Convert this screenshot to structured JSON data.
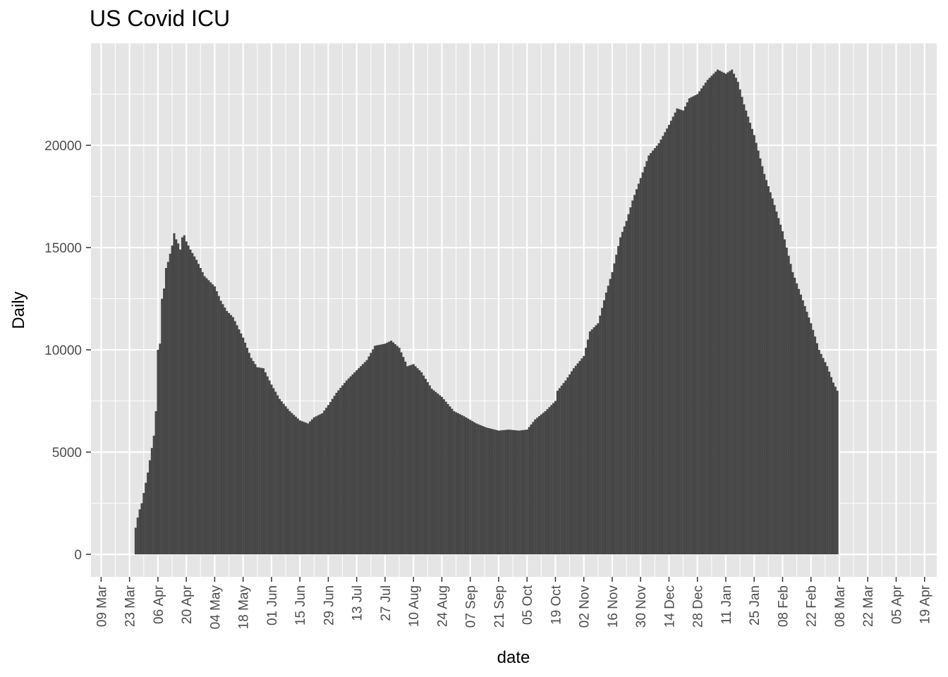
{
  "chart_data": {
    "type": "bar",
    "title": "US Covid ICU",
    "xlabel": "date",
    "ylabel": "Daily",
    "xlim": [
      "2020-03-04",
      "2021-04-25"
    ],
    "ylim": [
      -1100,
      25000
    ],
    "grid": true,
    "legend": "none",
    "colors": {
      "bar": "#474747",
      "panel": "#e5e5e5",
      "grid": "#ffffff",
      "text": "#4d4d4d"
    },
    "yticks": [
      0,
      5000,
      10000,
      15000,
      20000
    ],
    "ytick_labels": [
      "0",
      "5000",
      "10000",
      "15000",
      "20000"
    ],
    "xticks": [
      "2020-03-09",
      "2020-03-23",
      "2020-04-06",
      "2020-04-20",
      "2020-05-04",
      "2020-05-18",
      "2020-06-01",
      "2020-06-15",
      "2020-06-29",
      "2020-07-13",
      "2020-07-27",
      "2020-08-10",
      "2020-08-24",
      "2020-09-07",
      "2020-09-21",
      "2020-10-05",
      "2020-10-19",
      "2020-11-02",
      "2020-11-16",
      "2020-11-30",
      "2020-12-14",
      "2020-12-28",
      "2021-01-11",
      "2021-01-25",
      "2021-02-08",
      "2021-02-22",
      "2021-03-08",
      "2021-03-22",
      "2021-04-05",
      "2021-04-19"
    ],
    "xtick_labels": [
      "09 Mar",
      "23 Mar",
      "06 Apr",
      "20 Apr",
      "04 May",
      "18 May",
      "01 Jun",
      "15 Jun",
      "29 Jun",
      "13 Jul",
      "27 Jul",
      "10 Aug",
      "24 Aug",
      "07 Sep",
      "21 Sep",
      "05 Oct",
      "19 Oct",
      "02 Nov",
      "16 Nov",
      "30 Nov",
      "14 Dec",
      "28 Dec",
      "11 Jan",
      "25 Jan",
      "08 Feb",
      "22 Feb",
      "08 Mar",
      "22 Mar",
      "05 Apr",
      "19 Apr"
    ],
    "series": [
      {
        "start_date": "2020-03-26",
        "end_date": "2021-03-07",
        "keypoints": [
          [
            "2020-03-26",
            1300
          ],
          [
            "2020-03-27",
            1800
          ],
          [
            "2020-03-28",
            2200
          ],
          [
            "2020-03-29",
            2500
          ],
          [
            "2020-03-30",
            3000
          ],
          [
            "2020-03-31",
            3500
          ],
          [
            "2020-04-01",
            4000
          ],
          [
            "2020-04-02",
            4600
          ],
          [
            "2020-04-03",
            5200
          ],
          [
            "2020-04-04",
            5800
          ],
          [
            "2020-04-05",
            7000
          ],
          [
            "2020-04-06",
            10000
          ],
          [
            "2020-04-07",
            10300
          ],
          [
            "2020-04-08",
            12500
          ],
          [
            "2020-04-09",
            13000
          ],
          [
            "2020-04-10",
            14000
          ],
          [
            "2020-04-11",
            14300
          ],
          [
            "2020-04-12",
            14700
          ],
          [
            "2020-04-13",
            15100
          ],
          [
            "2020-04-14",
            15700
          ],
          [
            "2020-04-15",
            15400
          ],
          [
            "2020-04-16",
            15200
          ],
          [
            "2020-04-17",
            14900
          ],
          [
            "2020-04-18",
            15500
          ],
          [
            "2020-04-19",
            15600
          ],
          [
            "2020-04-20",
            15300
          ],
          [
            "2020-04-21",
            15100
          ],
          [
            "2020-04-22",
            14900
          ],
          [
            "2020-04-25",
            14400
          ],
          [
            "2020-04-29",
            13600
          ],
          [
            "2020-05-02",
            13300
          ],
          [
            "2020-05-04",
            13100
          ],
          [
            "2020-05-07",
            12400
          ],
          [
            "2020-05-10",
            11900
          ],
          [
            "2020-05-13",
            11600
          ],
          [
            "2020-05-18",
            10600
          ],
          [
            "2020-05-22",
            9600
          ],
          [
            "2020-05-25",
            9150
          ],
          [
            "2020-05-28",
            9100
          ],
          [
            "2020-06-01",
            8300
          ],
          [
            "2020-06-05",
            7600
          ],
          [
            "2020-06-10",
            7000
          ],
          [
            "2020-06-15",
            6550
          ],
          [
            "2020-06-19",
            6400
          ],
          [
            "2020-06-22",
            6700
          ],
          [
            "2020-06-26",
            6900
          ],
          [
            "2020-06-29",
            7300
          ],
          [
            "2020-07-03",
            7900
          ],
          [
            "2020-07-08",
            8500
          ],
          [
            "2020-07-13",
            9000
          ],
          [
            "2020-07-18",
            9500
          ],
          [
            "2020-07-22",
            10200
          ],
          [
            "2020-07-27",
            10300
          ],
          [
            "2020-07-30",
            10450
          ],
          [
            "2020-08-03",
            10100
          ],
          [
            "2020-08-07",
            9200
          ],
          [
            "2020-08-10",
            9300
          ],
          [
            "2020-08-14",
            8900
          ],
          [
            "2020-08-19",
            8100
          ],
          [
            "2020-08-24",
            7700
          ],
          [
            "2020-08-30",
            7000
          ],
          [
            "2020-09-04",
            6750
          ],
          [
            "2020-09-10",
            6400
          ],
          [
            "2020-09-15",
            6200
          ],
          [
            "2020-09-21",
            6050
          ],
          [
            "2020-09-26",
            6100
          ],
          [
            "2020-10-01",
            6050
          ],
          [
            "2020-10-05",
            6100
          ],
          [
            "2020-10-09",
            6600
          ],
          [
            "2020-10-14",
            7000
          ],
          [
            "2020-10-19",
            7500
          ],
          [
            "2020-10-20",
            8000
          ],
          [
            "2020-10-24",
            8500
          ],
          [
            "2020-10-28",
            9100
          ],
          [
            "2020-11-02",
            9700
          ],
          [
            "2020-11-05",
            10900
          ],
          [
            "2020-11-09",
            11300
          ],
          [
            "2020-11-13",
            12800
          ],
          [
            "2020-11-16",
            13800
          ],
          [
            "2020-11-20",
            15500
          ],
          [
            "2020-11-23",
            16300
          ],
          [
            "2020-11-26",
            17300
          ],
          [
            "2020-11-30",
            18400
          ],
          [
            "2020-12-04",
            19500
          ],
          [
            "2020-12-09",
            20100
          ],
          [
            "2020-12-14",
            21000
          ],
          [
            "2020-12-18",
            21800
          ],
          [
            "2020-12-21",
            21700
          ],
          [
            "2020-12-24",
            22300
          ],
          [
            "2020-12-28",
            22500
          ],
          [
            "2021-01-02",
            23200
          ],
          [
            "2021-01-07",
            23700
          ],
          [
            "2021-01-11",
            23500
          ],
          [
            "2021-01-14",
            23700
          ],
          [
            "2021-01-17",
            23100
          ],
          [
            "2021-01-20",
            22000
          ],
          [
            "2021-01-25",
            20500
          ],
          [
            "2021-01-30",
            18600
          ],
          [
            "2021-02-03",
            17400
          ],
          [
            "2021-02-08",
            15800
          ],
          [
            "2021-02-13",
            13800
          ],
          [
            "2021-02-17",
            12700
          ],
          [
            "2021-02-22",
            11300
          ],
          [
            "2021-02-26",
            10000
          ],
          [
            "2021-03-02",
            9200
          ],
          [
            "2021-03-05",
            8400
          ],
          [
            "2021-03-07",
            8000
          ]
        ]
      }
    ]
  }
}
